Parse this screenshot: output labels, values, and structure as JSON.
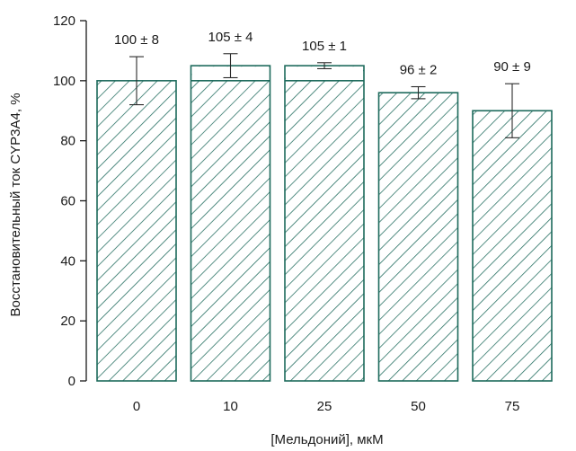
{
  "chart_data": {
    "type": "bar",
    "categories": [
      "0",
      "10",
      "25",
      "50",
      "75"
    ],
    "values": [
      100,
      105,
      105,
      96,
      90
    ],
    "errors": [
      8,
      4,
      1,
      2,
      9
    ],
    "data_labels": [
      "100 ± 8",
      "105 ± 4",
      "105 ± 1",
      "96 ± 2",
      "90 ± 9"
    ],
    "xlabel": "[Мельдоний], мкМ",
    "ylabel": "Восстановительный ток CYP3A4, %",
    "ylim": [
      0,
      120
    ],
    "yticks": [
      0,
      20,
      40,
      60,
      80,
      100,
      120
    ],
    "grid": false,
    "bar_color": "#1d6a5c",
    "bar_pattern": "diagonal-hatch",
    "inner_line_at": 100
  }
}
